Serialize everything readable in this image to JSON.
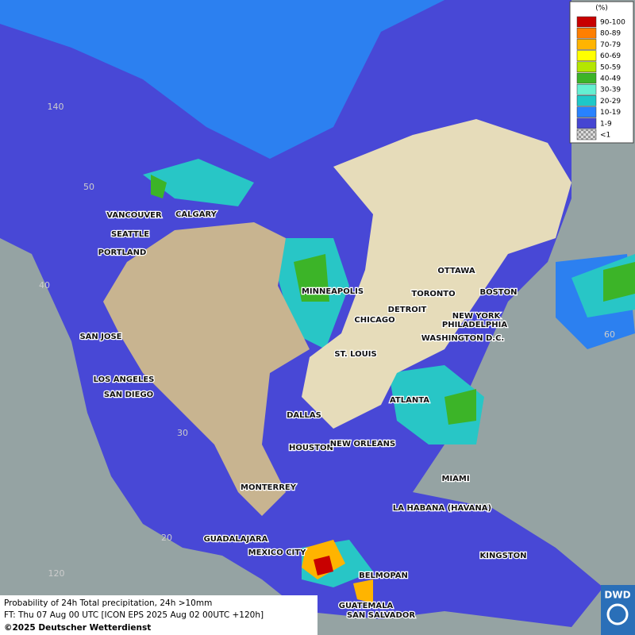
{
  "legend": {
    "title": "(%)",
    "entries": [
      {
        "label": "90-100",
        "color": "#c80000"
      },
      {
        "label": "80-89",
        "color": "#ff7f00"
      },
      {
        "label": "70-79",
        "color": "#ffb400"
      },
      {
        "label": "60-69",
        "color": "#ffff00"
      },
      {
        "label": "50-59",
        "color": "#b4e600"
      },
      {
        "label": "40-49",
        "color": "#3cb428"
      },
      {
        "label": "30-39",
        "color": "#64f0d2"
      },
      {
        "label": "20-29",
        "color": "#1ec8c8"
      },
      {
        "label": "10-19",
        "color": "#2882ff"
      },
      {
        "label": "1-9",
        "color": "#4646d2"
      },
      {
        "label": "<1",
        "color": "#b4b4b4"
      }
    ]
  },
  "cities": [
    "VANCOUVER",
    "CALGARY",
    "SEATTLE",
    "PORTLAND",
    "MINNEAPOLIS",
    "OTTAWA",
    "TORONTO",
    "BOSTON",
    "DETROIT",
    "CHICAGO",
    "NEW YORK",
    "PHILADELPHIA",
    "WASHINGTON D.C.",
    "SAN JOSE",
    "ST. LOUIS",
    "LOS ANGELES",
    "SAN DIEGO",
    "ATLANTA",
    "DALLAS",
    "HOUSTON",
    "NEW ORLEANS",
    "MIAMI",
    "MONTERREY",
    "LA HABANA (HAVANA)",
    "GUADALAJARA",
    "MEXICO CITY",
    "KINGSTON",
    "BELMOPAN",
    "GUATEMALA",
    "SAN SALVADOR"
  ],
  "graticule": [
    "140",
    "50",
    "40",
    "30",
    "20",
    "120",
    "60"
  ],
  "footer": {
    "line1": "Probability of 24h Total precipitation, 24h >10mm",
    "line2": "FT: Thu 07 Aug 00 UTC [ICON EPS 2025 Aug 02 00UTC +120h]",
    "line3": "©2025 Deutscher Wetterdienst"
  },
  "logo": "DWD"
}
